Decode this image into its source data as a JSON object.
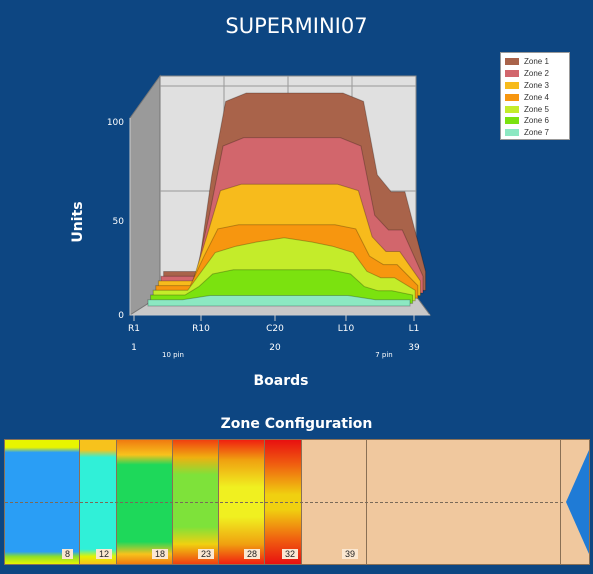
{
  "title": "SUPERMINI07",
  "chart_data": {
    "type": "area",
    "title": "SUPERMINI07",
    "xlabel": "Boards",
    "ylabel": "Units",
    "ylim": [
      0,
      100
    ],
    "y_ticks": [
      "0",
      "50",
      "100"
    ],
    "x_ticks_top": [
      "R1",
      "R10",
      "C20",
      "L10",
      "L1"
    ],
    "x_ticks_bottom": [
      "1",
      "20",
      "39"
    ],
    "x_notes": [
      "10 pin",
      "7 pin"
    ],
    "legend_position": "top-right",
    "x": [
      1,
      4,
      6,
      8,
      10,
      13,
      16,
      20,
      24,
      27,
      30,
      32,
      34,
      36,
      39
    ],
    "series": [
      {
        "name": "Zone 1",
        "color": "#a9634a",
        "values": [
          9,
          9,
          9,
          55,
          90,
          94,
          94,
          94,
          94,
          94,
          90,
          55,
          47,
          47,
          9
        ]
      },
      {
        "name": "Zone 2",
        "color": "#d2666c",
        "values": [
          8,
          8,
          8,
          37,
          70,
          74,
          74,
          74,
          74,
          74,
          70,
          37,
          30,
          30,
          8
        ]
      },
      {
        "name": "Zone 3",
        "color": "#f7bb1c",
        "values": [
          7,
          7,
          7,
          28,
          50,
          53,
          53,
          53,
          53,
          53,
          50,
          28,
          21,
          21,
          7
        ]
      },
      {
        "name": "Zone 4",
        "color": "#f7960f",
        "values": [
          6,
          6,
          6,
          20,
          33,
          35,
          35,
          35,
          35,
          35,
          33,
          20,
          16,
          16,
          6
        ]
      },
      {
        "name": "Zone 5",
        "color": "#c4ec2a",
        "values": [
          5,
          5,
          5,
          14,
          23,
          26,
          28,
          30,
          28,
          26,
          23,
          14,
          11,
          11,
          5
        ]
      },
      {
        "name": "Zone 6",
        "color": "#7be20f",
        "values": [
          4,
          4,
          4,
          8,
          14,
          16,
          16,
          16,
          16,
          16,
          14,
          8,
          6,
          6,
          4
        ]
      },
      {
        "name": "Zone 7",
        "color": "#8ce8c2",
        "values": [
          3,
          3,
          3,
          4,
          5,
          5,
          5,
          5,
          5,
          5,
          5,
          4,
          3,
          3,
          3
        ]
      }
    ]
  },
  "zone_configuration": {
    "title": "Zone Configuration",
    "labels": [
      "8",
      "12",
      "18",
      "23",
      "28",
      "32",
      "39"
    ]
  }
}
